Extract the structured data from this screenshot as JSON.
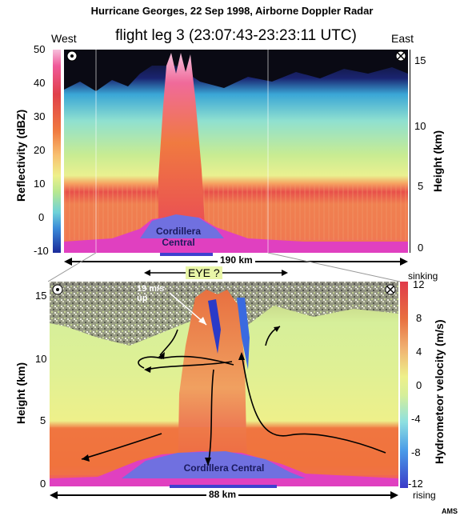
{
  "header": {
    "title": "Hurricane Georges, 22 Sep 1998, Airborne Doppler Radar",
    "subtitle": "flight leg 3 (23:07:43-23:23:11 UTC)",
    "west_label": "West",
    "east_label": "East",
    "credit": "AMS"
  },
  "chart_data": [
    {
      "type": "heatmap",
      "name": "reflectivity-cross-section",
      "colorbar_label": "Reflectivity (dBZ)",
      "colorbar_ticks": [
        "50",
        "40",
        "30",
        "20",
        "10",
        "0",
        "-10"
      ],
      "colorbar_range": [
        -10,
        50
      ],
      "ylabel": "Height (km)",
      "y_ticks": [
        "15",
        "10",
        "5",
        "0"
      ],
      "ylim": [
        0,
        16
      ],
      "distance_label": "190 km",
      "terrain_label_line1": "Cordillera",
      "terrain_label_line2": "Central"
    },
    {
      "type": "heatmap",
      "name": "hydrometeor-velocity-cross-section",
      "ylabel": "Height (km)",
      "y_ticks": [
        "15",
        "10",
        "5",
        "0"
      ],
      "ylim": [
        0,
        16
      ],
      "colorbar_label": "Hydrometeor velocity (m/s)",
      "colorbar_ticks": [
        "12",
        "8",
        "4",
        "0",
        "-4",
        "-8",
        "-12"
      ],
      "colorbar_range": [
        -12,
        12
      ],
      "colorbar_top_label": "sinking",
      "colorbar_bottom_label": "rising",
      "eye_label": "EYE ?",
      "updraft_note_line1": "19 m/s",
      "updraft_note_line2": "up",
      "distance_label": "88 km",
      "terrain_label": "Cordillera Central"
    }
  ],
  "colors": {
    "reflectivity_scale": [
      "#1a2a9a",
      "#3a8ad8",
      "#6fd2d8",
      "#b8e890",
      "#eef08a",
      "#f8c070",
      "#f07a40",
      "#e0404a",
      "#f05a9a",
      "#f0b0d0"
    ],
    "velocity_scale": [
      "#3a3ac8",
      "#4a9ae8",
      "#8ee0e0",
      "#d6ef9a",
      "#eef08a",
      "#f0b070",
      "#e87040",
      "#e03a4a"
    ],
    "terrain": "#7070e0",
    "ground": "#e040c0"
  }
}
